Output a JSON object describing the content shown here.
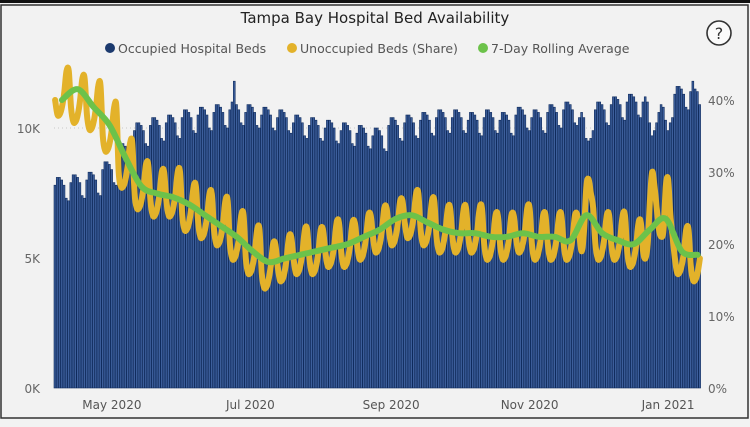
{
  "chart_data": {
    "type": "bar+line",
    "title": "Tampa Bay Hospital Bed Availability",
    "legend_position": "top",
    "help_icon": "question-circle-icon",
    "colors": {
      "occupied": "#244a8c",
      "unoccupied": "#e3b22a",
      "rolling": "#6cc24a"
    },
    "x_start": "2020-04-06",
    "x_end": "2021-01-15",
    "x_step": "1 day",
    "x_tick_labels": [
      {
        "date": "2020-05-01",
        "label": "May 2020"
      },
      {
        "date": "2020-07-01",
        "label": "Jul 2020"
      },
      {
        "date": "2020-09-01",
        "label": "Sep 2020"
      },
      {
        "date": "2020-11-01",
        "label": "Nov 2020"
      },
      {
        "date": "2021-01-01",
        "label": "Jan 2021"
      }
    ],
    "y_left": {
      "range": [
        0,
        11.85
      ],
      "unit": "K",
      "ticks": [
        {
          "v": 0,
          "label": "0K"
        },
        {
          "v": 5,
          "label": "5K"
        },
        {
          "v": 10,
          "label": "10K"
        }
      ]
    },
    "y_right": {
      "range": [
        0,
        42.8
      ],
      "unit": "%",
      "ticks": [
        {
          "v": 0,
          "label": "0%"
        },
        {
          "v": 10,
          "label": "10%"
        },
        {
          "v": 20,
          "label": "20%"
        },
        {
          "v": 30,
          "label": "30%"
        },
        {
          "v": 40,
          "label": "40%"
        }
      ]
    },
    "grid": "dotted at 5K and 10K",
    "series": [
      {
        "name": "Occupied Hospital Beds",
        "type": "bar",
        "axis": "left",
        "unit": "thousands",
        "values": [
          7.8,
          8.1,
          8.1,
          8.0,
          7.8,
          7.3,
          7.2,
          7.9,
          8.2,
          8.2,
          8.1,
          7.9,
          7.4,
          7.3,
          8.0,
          8.3,
          8.3,
          8.2,
          8.0,
          7.5,
          7.4,
          8.4,
          8.7,
          8.7,
          8.6,
          8.4,
          7.9,
          7.8,
          9.1,
          9.4,
          9.4,
          9.3,
          9.1,
          8.6,
          8.5,
          9.9,
          10.2,
          10.2,
          10.1,
          9.9,
          9.4,
          9.3,
          10.1,
          10.4,
          10.4,
          10.3,
          10.1,
          9.6,
          9.5,
          10.2,
          10.5,
          10.5,
          10.4,
          10.2,
          9.7,
          9.6,
          10.4,
          10.7,
          10.7,
          10.6,
          10.4,
          9.9,
          9.8,
          10.5,
          10.8,
          10.8,
          10.7,
          10.5,
          10.0,
          9.9,
          10.6,
          10.9,
          10.9,
          10.8,
          10.6,
          10.1,
          10.0,
          10.7,
          11.0,
          11.8,
          10.9,
          10.7,
          10.2,
          10.1,
          10.6,
          10.9,
          10.9,
          10.8,
          10.6,
          10.1,
          10.0,
          10.5,
          10.8,
          10.8,
          10.7,
          10.5,
          10.0,
          9.9,
          10.4,
          10.7,
          10.7,
          10.6,
          10.4,
          9.9,
          9.8,
          10.2,
          10.5,
          10.5,
          10.4,
          10.2,
          9.7,
          9.6,
          10.1,
          10.4,
          10.4,
          10.3,
          10.1,
          9.6,
          9.5,
          10.0,
          10.3,
          10.3,
          10.2,
          10.0,
          9.5,
          9.4,
          9.9,
          10.2,
          10.2,
          10.1,
          9.9,
          9.4,
          9.3,
          9.8,
          10.1,
          10.1,
          10.0,
          9.8,
          9.3,
          9.2,
          9.7,
          10.0,
          10.0,
          9.9,
          9.7,
          9.2,
          9.1,
          10.1,
          10.4,
          10.4,
          10.3,
          10.1,
          9.6,
          9.5,
          10.2,
          10.5,
          10.5,
          10.4,
          10.2,
          9.7,
          9.6,
          10.3,
          10.6,
          10.6,
          10.5,
          10.3,
          9.8,
          9.7,
          10.4,
          10.7,
          10.7,
          10.6,
          10.4,
          9.9,
          9.8,
          10.4,
          10.7,
          10.7,
          10.6,
          10.4,
          9.9,
          9.8,
          10.3,
          10.6,
          10.6,
          10.5,
          10.3,
          9.8,
          9.7,
          10.4,
          10.7,
          10.7,
          10.6,
          10.4,
          9.9,
          9.8,
          10.3,
          10.6,
          10.6,
          10.5,
          10.3,
          9.8,
          9.7,
          10.5,
          10.8,
          10.8,
          10.7,
          10.5,
          10.0,
          9.9,
          10.4,
          10.7,
          10.7,
          10.6,
          10.4,
          9.9,
          9.8,
          10.6,
          10.9,
          10.9,
          10.8,
          10.6,
          10.1,
          10.0,
          10.7,
          11.0,
          11.0,
          10.9,
          10.7,
          10.2,
          10.1,
          10.4,
          10.6,
          10.4,
          9.6,
          9.5,
          9.6,
          9.9,
          10.7,
          11.0,
          11.0,
          10.9,
          10.7,
          10.2,
          10.1,
          10.9,
          11.2,
          11.2,
          11.1,
          10.9,
          10.4,
          10.3,
          11.0,
          11.3,
          11.3,
          11.2,
          11.0,
          10.5,
          10.4,
          11.0,
          11.2,
          11.0,
          10.2,
          9.7,
          9.9,
          10.2,
          10.6,
          10.9,
          10.8,
          10.3,
          9.9,
          10.2,
          10.4,
          11.3,
          11.6,
          11.6,
          11.5,
          11.3,
          10.8,
          10.7,
          11.4,
          11.8,
          11.5,
          11.4,
          10.9
        ]
      },
      {
        "name": "Unoccupied Beds (Share)",
        "type": "line",
        "axis": "right",
        "unit": "%",
        "values": [
          40,
          38,
          38,
          39,
          41,
          44,
          44,
          39,
          37,
          37,
          38,
          40,
          43,
          43,
          38,
          36,
          36,
          37,
          39,
          42,
          42,
          35,
          33,
          33,
          34,
          36,
          39,
          39,
          30,
          28,
          28,
          29,
          31,
          34,
          34,
          27,
          25,
          25,
          26,
          28,
          31,
          31,
          26,
          24,
          24,
          25,
          27,
          30,
          30,
          26,
          24,
          24,
          25,
          27,
          30,
          30,
          24,
          22,
          22,
          23,
          25,
          28,
          28,
          23,
          21,
          21,
          22,
          24,
          27,
          27,
          22,
          20,
          20,
          21,
          23,
          26,
          26,
          20,
          18,
          18,
          19,
          21,
          24,
          24,
          18,
          16,
          16,
          17,
          19,
          22,
          22,
          16,
          14,
          14,
          15,
          17,
          20,
          20,
          17,
          15,
          15,
          16,
          18,
          21,
          21,
          18,
          16,
          16,
          17,
          19,
          22,
          22,
          18,
          16,
          16,
          17,
          19,
          22,
          22,
          19,
          17,
          17,
          18,
          20,
          23,
          23,
          19,
          17,
          17,
          18,
          20,
          23,
          23,
          20,
          18,
          18,
          19,
          21,
          24,
          24,
          21,
          19,
          19,
          20,
          22,
          25,
          25,
          22,
          20,
          20,
          21,
          23,
          26,
          26,
          23,
          21,
          21,
          22,
          24,
          27,
          27,
          22,
          20,
          20,
          21,
          23,
          26,
          26,
          21,
          19,
          19,
          20,
          22,
          25,
          25,
          21,
          19,
          19,
          20,
          22,
          25,
          25,
          21,
          19,
          19,
          20,
          22,
          25,
          25,
          20,
          18,
          18,
          19,
          21,
          24,
          24,
          20,
          18,
          18,
          19,
          21,
          24,
          24,
          21,
          19,
          19,
          20,
          22,
          25,
          25,
          20,
          18,
          18,
          19,
          21,
          24,
          24,
          20,
          18,
          18,
          19,
          21,
          24,
          24,
          20,
          18,
          18,
          19,
          21,
          24,
          24,
          21,
          19,
          22,
          28,
          29,
          27,
          25,
          20,
          18,
          18,
          19,
          21,
          24,
          24,
          20,
          18,
          18,
          19,
          21,
          24,
          24,
          19,
          17,
          17,
          18,
          20,
          23,
          23,
          19,
          18,
          20,
          26,
          30,
          28,
          25,
          22,
          21,
          22,
          28,
          29,
          24,
          21,
          18,
          16,
          16,
          17,
          19,
          22,
          22,
          17,
          15,
          15,
          16,
          18
        ]
      },
      {
        "name": "7-Day Rolling Average",
        "type": "line",
        "axis": "right",
        "unit": "%",
        "dates": [
          "2020-04-09",
          "2020-04-16",
          "2020-04-23",
          "2020-04-30",
          "2020-05-07",
          "2020-05-14",
          "2020-05-21",
          "2020-05-28",
          "2020-06-04",
          "2020-06-11",
          "2020-06-18",
          "2020-06-25",
          "2020-07-02",
          "2020-07-09",
          "2020-07-16",
          "2020-07-23",
          "2020-07-30",
          "2020-08-06",
          "2020-08-13",
          "2020-08-20",
          "2020-08-27",
          "2020-09-03",
          "2020-09-10",
          "2020-09-17",
          "2020-09-24",
          "2020-10-01",
          "2020-10-08",
          "2020-10-15",
          "2020-10-22",
          "2020-10-29",
          "2020-11-05",
          "2020-11-12",
          "2020-11-19",
          "2020-11-26",
          "2020-12-03",
          "2020-12-10",
          "2020-12-17",
          "2020-12-24",
          "2020-12-31",
          "2021-01-07",
          "2021-01-14"
        ],
        "values": [
          40,
          41.5,
          39,
          36.5,
          32,
          28,
          27,
          26.5,
          25.5,
          24,
          22.5,
          21,
          19,
          17.5,
          18,
          18.5,
          19,
          19.5,
          20,
          21,
          22,
          23.5,
          24,
          23,
          22,
          21.5,
          21.5,
          21,
          21,
          21.5,
          21,
          21,
          20.5,
          24,
          21.5,
          20.5,
          20,
          22,
          23.5,
          19,
          18.5
        ]
      }
    ]
  }
}
